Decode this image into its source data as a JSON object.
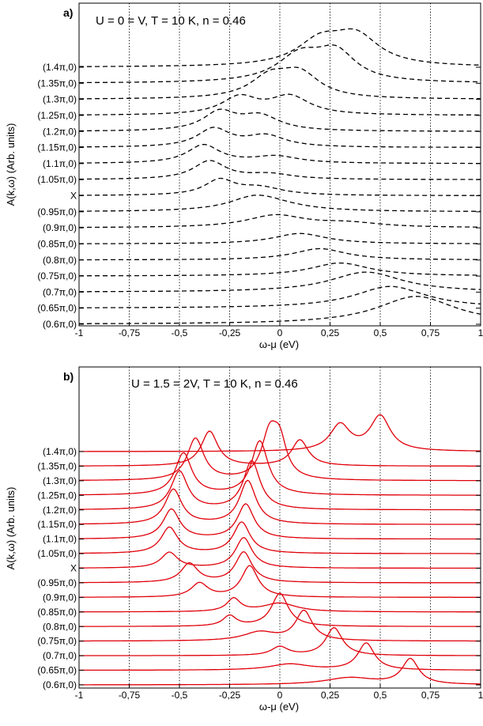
{
  "chart_data": [
    {
      "panel_label": "a)",
      "type": "line",
      "title": "U = 0 = V, T = 10 K, n = 0.46",
      "xlabel": "ω-μ (eV)",
      "ylabel": "A(k,ω) (Arb. units)",
      "xlim": [
        -1,
        1
      ],
      "x_ticks": [
        -1,
        -0.75,
        -0.5,
        -0.25,
        0,
        0.25,
        0.5,
        0.75,
        1
      ],
      "x_tick_labels": [
        "-1",
        "-0,75",
        "-0,5",
        "-0,25",
        "0",
        "0,25",
        "0,5",
        "0,75",
        "1"
      ],
      "vertical_dotted_lines_at": [
        -0.75,
        -0.5,
        -0.25,
        0,
        0.25,
        0.5,
        0.75
      ],
      "line_style": "dashed",
      "line_color": "#000000",
      "y_tick_labels": [
        "(0.6π,0)",
        "(0.65π,0)",
        "(0.7π,0)",
        "(0.75π,0)",
        "(0.8π,0)",
        "(0.85π,0)",
        "(0.9π,0)",
        "(0.95π,0)",
        "X",
        "(1.05π,0)",
        "(1.1π,0)",
        "(1.15π,0)",
        "(1.2π,0)",
        "(1.25π,0)",
        "(1.3π,0)",
        "(1.35π,0)",
        "(1.4π,0)"
      ],
      "series": [
        {
          "peaks": [
            [
              0.68,
              1.6,
              0.24
            ]
          ]
        },
        {
          "peaks": [
            [
              0.55,
              1.25,
              0.22
            ]
          ]
        },
        {
          "peaks": [
            [
              0.43,
              1.15,
              0.22
            ]
          ]
        },
        {
          "peaks": [
            [
              0.3,
              0.75,
              0.18
            ]
          ]
        },
        {
          "peaks": [
            [
              0.2,
              0.65,
              0.16
            ]
          ]
        },
        {
          "peaks": [
            [
              0.1,
              0.6,
              0.16
            ]
          ]
        },
        {
          "peaks": [
            [
              -0.02,
              0.7,
              0.18
            ],
            [
              0.34,
              0.25,
              0.2
            ]
          ]
        },
        {
          "peaks": [
            [
              -0.13,
              0.6,
              0.15
            ],
            [
              -0.05,
              0.4,
              0.2
            ]
          ]
        },
        {
          "peaks": [
            [
              -0.3,
              0.85,
              0.09
            ],
            [
              -0.1,
              0.45,
              0.14
            ]
          ]
        },
        {
          "peaks": [
            [
              -0.35,
              1.05,
              0.1
            ],
            [
              -0.05,
              0.3,
              0.14
            ]
          ]
        },
        {
          "peaks": [
            [
              -0.38,
              1.05,
              0.1
            ],
            [
              -0.02,
              0.4,
              0.14
            ]
          ]
        },
        {
          "peaks": [
            [
              -0.33,
              1.05,
              0.1
            ],
            [
              -0.07,
              0.65,
              0.12
            ]
          ]
        },
        {
          "peaks": [
            [
              -0.3,
              1.05,
              0.1
            ],
            [
              -0.1,
              0.85,
              0.12
            ]
          ]
        },
        {
          "peaks": [
            [
              -0.2,
              1.0,
              0.11
            ],
            [
              0.05,
              1.05,
              0.12
            ]
          ]
        },
        {
          "peaks": [
            [
              -0.05,
              1.15,
              0.12
            ],
            [
              0.1,
              1.35,
              0.12
            ]
          ]
        },
        {
          "peaks": [
            [
              0.1,
              1.5,
              0.14
            ],
            [
              0.28,
              1.6,
              0.12
            ]
          ]
        },
        {
          "peaks": [
            [
              0.2,
              1.35,
              0.14
            ],
            [
              0.38,
              1.65,
              0.14
            ]
          ]
        }
      ]
    },
    {
      "panel_label": "b)",
      "type": "line",
      "title": "U = 1.5 = 2V, T = 10 K, n = 0.46",
      "xlabel": "ω-μ (eV)",
      "ylabel": "A(k,ω) (Arb. units)",
      "xlim": [
        -1,
        1
      ],
      "x_ticks": [
        -1,
        -0.75,
        -0.5,
        -0.25,
        0,
        0.25,
        0.5,
        0.75,
        1
      ],
      "x_tick_labels": [
        "-1",
        "-0,75",
        "-0,5",
        "-0,25",
        "0",
        "0,25",
        "0,5",
        "0,75",
        "1"
      ],
      "vertical_dotted_lines_at": [
        -0.75,
        -0.5,
        -0.25,
        0,
        0.25,
        0.5,
        0.75
      ],
      "line_style": "solid",
      "line_color": "#e0000a",
      "y_tick_labels": [
        "(0.6π,0)",
        "(0.65π,0)",
        "(0.7π,0)",
        "(0.75π,0)",
        "(0.8π,0)",
        "(0.85π,0)",
        "(0.9π,0)",
        "(0.95π,0)",
        "X",
        "(1.05π,0)",
        "(1.1π,0)",
        "(1.15π,0)",
        "(1.2π,0)",
        "(1.25π,0)",
        "(1.3π,0)",
        "(1.35π,0)",
        "(1.4π,0)"
      ],
      "series": [
        {
          "peaks": [
            [
              0.65,
              1.45,
              0.05
            ],
            [
              0.35,
              0.4,
              0.15
            ]
          ]
        },
        {
          "peaks": [
            [
              0.43,
              1.55,
              0.05
            ],
            [
              0.05,
              0.35,
              0.12
            ]
          ]
        },
        {
          "peaks": [
            [
              0.27,
              1.6,
              0.05
            ],
            [
              0.0,
              0.5,
              0.05
            ]
          ]
        },
        {
          "peaks": [
            [
              0.12,
              1.7,
              0.05
            ],
            [
              -0.1,
              0.5,
              0.1
            ]
          ]
        },
        {
          "peaks": [
            [
              -0.25,
              0.6,
              0.04
            ],
            [
              0.0,
              1.9,
              0.05
            ]
          ]
        },
        {
          "peaks": [
            [
              -0.23,
              0.75,
              0.04
            ],
            [
              0.0,
              0.5,
              0.1
            ]
          ]
        },
        {
          "peaks": [
            [
              -0.4,
              0.8,
              0.05
            ],
            [
              -0.15,
              1.8,
              0.05
            ]
          ]
        },
        {
          "peaks": [
            [
              -0.45,
              1.1,
              0.05
            ],
            [
              -0.18,
              1.75,
              0.05
            ]
          ]
        },
        {
          "peaks": [
            [
              -0.55,
              0.9,
              0.05
            ],
            [
              -0.18,
              1.75,
              0.05
            ]
          ]
        },
        {
          "peaks": [
            [
              -0.55,
              1.5,
              0.05
            ],
            [
              -0.19,
              1.8,
              0.05
            ]
          ]
        },
        {
          "peaks": [
            [
              -0.54,
              1.7,
              0.05
            ],
            [
              -0.17,
              2.0,
              0.05
            ]
          ]
        },
        {
          "peaks": [
            [
              -0.53,
              2.0,
              0.05
            ],
            [
              -0.16,
              2.5,
              0.05
            ]
          ]
        },
        {
          "peaks": [
            [
              -0.5,
              2.2,
              0.05
            ],
            [
              -0.14,
              2.8,
              0.05
            ]
          ]
        },
        {
          "peaks": [
            [
              -0.48,
              2.4,
              0.05
            ],
            [
              -0.1,
              3.1,
              0.05
            ]
          ]
        },
        {
          "peaks": [
            [
              -0.42,
              2.4,
              0.05
            ],
            [
              -0.05,
              2.6,
              0.05
            ],
            [
              0.0,
              1.8,
              0.04
            ]
          ]
        },
        {
          "peaks": [
            [
              -0.35,
              2.0,
              0.05
            ],
            [
              0.1,
              1.5,
              0.05
            ]
          ]
        },
        {
          "peaks": [
            [
              0.3,
              1.5,
              0.06
            ],
            [
              0.5,
              2.0,
              0.06
            ]
          ]
        }
      ]
    }
  ]
}
